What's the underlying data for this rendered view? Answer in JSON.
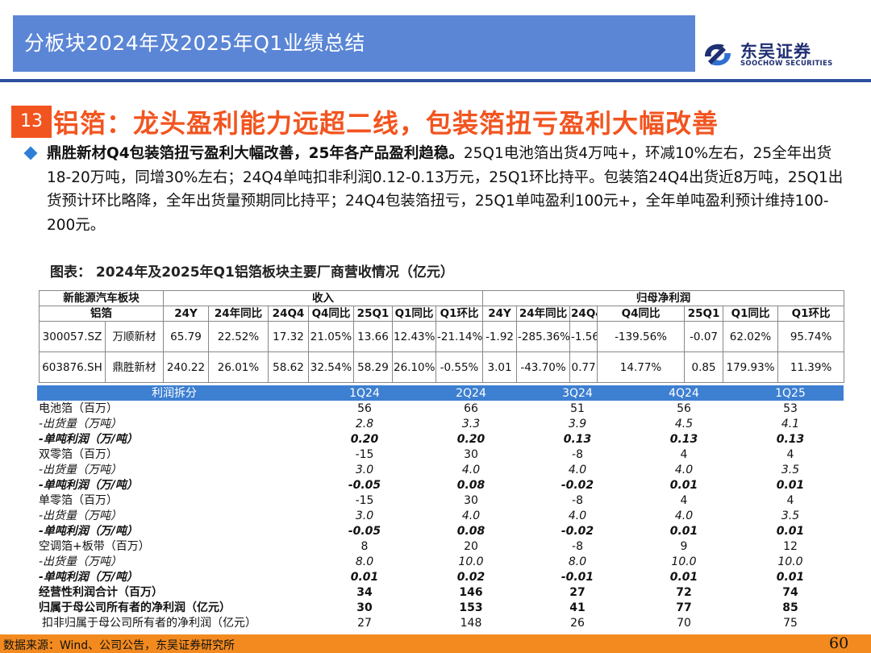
{
  "header": {
    "title": "分板块2024年及2025年Q1业绩总结",
    "logo_cn": "东吴证券",
    "logo_en": "SOOCHOW SECURITIES",
    "accent_color": "#5b86d6"
  },
  "section": {
    "number": "13",
    "title": "铝箔：龙头盈利能力远超二线，包装箔扭亏盈利大幅改善"
  },
  "bullet": {
    "lead": "鼎胜新材Q4包装箔扭亏盈利大幅改善，25年各产品盈利趋稳。",
    "body": "25Q1电池箔出货4万吨+，环减10%左右，25全年出货18-20万吨，同增30%左右；24Q4单吨扣非利润0.12-0.13万元，25Q1环比持平。包装箔24Q4出货近8万吨，25Q1出货预计环比略降，全年出货量预期同比持平；24Q4包装箔扭亏，25Q1单吨盈利100元+，全年单吨盈利预计维持100-200元。"
  },
  "figure_title": "图表： 2024年及2025年Q1铝箔板块主要厂商营收情况（亿元）",
  "upper_table": {
    "group_head": "新能源汽车板块",
    "rev_head": "收入",
    "np_head": "归母净利润",
    "sub_head": "铝箔",
    "cols": [
      "24Y",
      "24年同比",
      "24Q4",
      "Q4同比",
      "25Q1",
      "Q1同比",
      "Q1环比",
      "24Y",
      "24年同比",
      "24Q4",
      "Q4同比",
      "25Q1",
      "Q1同比",
      "Q1环比"
    ],
    "rows": [
      {
        "code": "300057.SZ",
        "name": "万顺新材",
        "cells": [
          "65.79",
          "22.52%",
          "17.32",
          "21.05%",
          "13.66",
          "12.43%",
          "-21.14%",
          "-1.92",
          "-285.36%",
          "-1.56",
          "-139.56%",
          "-0.07",
          "62.02%",
          "95.74%"
        ]
      },
      {
        "code": "603876.SH",
        "name": "鼎胜新材",
        "cells": [
          "240.22",
          "26.01%",
          "58.62",
          "32.54%",
          "58.29",
          "26.10%",
          "-0.55%",
          "3.01",
          "-43.70%",
          "0.77",
          "14.77%",
          "0.85",
          "179.93%",
          "11.39%"
        ]
      }
    ]
  },
  "lower_table": {
    "head": [
      "利润拆分",
      "1Q24",
      "2Q24",
      "3Q24",
      "4Q24",
      "1Q25"
    ],
    "rows": [
      {
        "label": "电池箔（百万）",
        "style": "",
        "values": [
          "56",
          "66",
          "51",
          "56",
          "53"
        ]
      },
      {
        "label": "-出货量（万吨）",
        "style": "it",
        "values": [
          "2.8",
          "3.3",
          "3.9",
          "4.5",
          "4.1"
        ]
      },
      {
        "label": "-单吨利润（万/吨）",
        "style": "it b",
        "values": [
          "0.20",
          "0.20",
          "0.13",
          "0.13",
          "0.13"
        ]
      },
      {
        "label": "双零箔（百万）",
        "style": "",
        "values": [
          "-15",
          "30",
          "-8",
          "4",
          "4"
        ]
      },
      {
        "label": "-出货量（万吨）",
        "style": "it",
        "values": [
          "3.0",
          "4.0",
          "4.0",
          "4.0",
          "3.5"
        ]
      },
      {
        "label": "-单吨利润（万/吨）",
        "style": "it b",
        "values": [
          "-0.05",
          "0.08",
          "-0.02",
          "0.01",
          "0.01"
        ]
      },
      {
        "label": "单零箔（百万）",
        "style": "",
        "values": [
          "-15",
          "30",
          "-8",
          "4",
          "4"
        ]
      },
      {
        "label": "-出货量（万吨）",
        "style": "it",
        "values": [
          "3.0",
          "4.0",
          "4.0",
          "4.0",
          "3.5"
        ]
      },
      {
        "label": "-单吨利润（万/吨）",
        "style": "it b",
        "values": [
          "-0.05",
          "0.08",
          "-0.02",
          "0.01",
          "0.01"
        ]
      },
      {
        "label": "空调箔+板带（百万）",
        "style": "",
        "values": [
          "8",
          "20",
          "-8",
          "9",
          "12"
        ]
      },
      {
        "label": "-出货量（万吨）",
        "style": "it",
        "values": [
          "8.0",
          "10.0",
          "8.0",
          "10.0",
          "10.0"
        ]
      },
      {
        "label": "-单吨利润（万/吨）",
        "style": "it b",
        "values": [
          "0.01",
          "0.02",
          "-0.01",
          "0.01",
          "0.01"
        ]
      },
      {
        "label": "经营性利润合计（百万）",
        "style": "b",
        "values": [
          "34",
          "146",
          "27",
          "72",
          "74"
        ]
      },
      {
        "label": "归属于母公司所有者的净利润（亿元）",
        "style": "b",
        "values": [
          "30",
          "153",
          "41",
          "77",
          "85"
        ]
      },
      {
        "label": "扣非归属于母公司所有者的净利润（亿元）",
        "style": "",
        "values": [
          "27",
          "148",
          "26",
          "70",
          "75"
        ]
      }
    ]
  },
  "footer": {
    "source": "数据来源：Wind、公司公告，东吴证券研究所",
    "page": "60"
  }
}
